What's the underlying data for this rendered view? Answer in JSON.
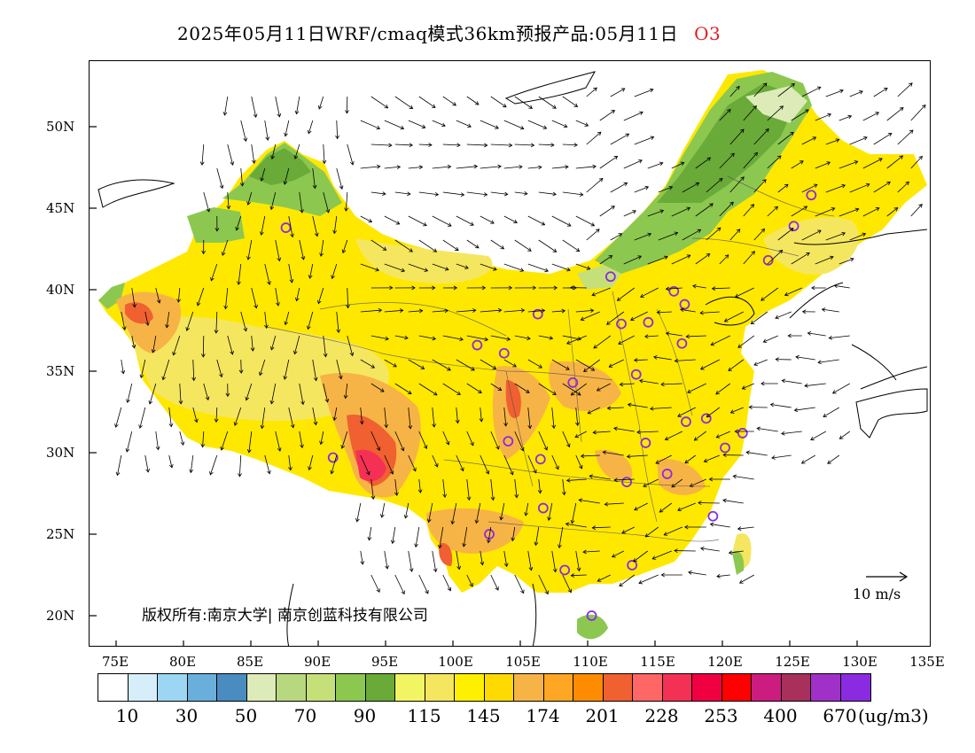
{
  "title": {
    "text": "2025年05月11日WRF/cmaq模式36km预报产品:05月11日",
    "species": "O3"
  },
  "map": {
    "lat_labels": [
      "50N",
      "45N",
      "40N",
      "35N",
      "30N",
      "25N",
      "20N"
    ],
    "lon_labels": [
      "75E",
      "80E",
      "85E",
      "90E",
      "95E",
      "100E",
      "105E",
      "110E",
      "115E",
      "120E",
      "125E",
      "130E",
      "135E"
    ],
    "copyright": "版权所有:南京大学| 南京创蓝科技有限公司",
    "wind_scale_label": "10 m/s"
  },
  "legend": {
    "colors": [
      "#ffffff",
      "#d5eefa",
      "#9dd6f2",
      "#6aaedc",
      "#4a8cc0",
      "#dcebb8",
      "#b8d880",
      "#c5e078",
      "#8cc850",
      "#6aaa38",
      "#f2f562",
      "#f5e660",
      "#fff000",
      "#ffda00",
      "#f7b446",
      "#ffa724",
      "#ff8c00",
      "#f06030",
      "#ff6666",
      "#f53055",
      "#f00040",
      "#ff0000",
      "#cc1c80",
      "#a8305a",
      "#a030c8",
      "#8a2be2"
    ],
    "labels": [
      "10",
      "30",
      "50",
      "70",
      "90",
      "115",
      "145",
      "174",
      "201",
      "228",
      "253",
      "400",
      "670"
    ],
    "unit": "(ug/m3)"
  },
  "stations": [
    {
      "lon": 87.6,
      "lat": 43.8
    },
    {
      "lon": 91.1,
      "lat": 29.7
    },
    {
      "lon": 101.8,
      "lat": 36.6
    },
    {
      "lon": 103.8,
      "lat": 36.1
    },
    {
      "lon": 106.3,
      "lat": 38.5
    },
    {
      "lon": 111.7,
      "lat": 40.8
    },
    {
      "lon": 112.5,
      "lat": 37.9
    },
    {
      "lon": 114.5,
      "lat": 38.0
    },
    {
      "lon": 116.4,
      "lat": 39.9
    },
    {
      "lon": 117.2,
      "lat": 39.1
    },
    {
      "lon": 117.0,
      "lat": 36.7
    },
    {
      "lon": 113.6,
      "lat": 34.8
    },
    {
      "lon": 108.9,
      "lat": 34.3
    },
    {
      "lon": 104.1,
      "lat": 30.7
    },
    {
      "lon": 106.5,
      "lat": 29.6
    },
    {
      "lon": 114.3,
      "lat": 30.6
    },
    {
      "lon": 117.3,
      "lat": 31.9
    },
    {
      "lon": 118.8,
      "lat": 32.1
    },
    {
      "lon": 121.5,
      "lat": 31.2
    },
    {
      "lon": 120.2,
      "lat": 30.3
    },
    {
      "lon": 112.9,
      "lat": 28.2
    },
    {
      "lon": 115.9,
      "lat": 28.7
    },
    {
      "lon": 119.3,
      "lat": 26.1
    },
    {
      "lon": 106.7,
      "lat": 26.6
    },
    {
      "lon": 102.7,
      "lat": 25.0
    },
    {
      "lon": 108.3,
      "lat": 22.8
    },
    {
      "lon": 113.3,
      "lat": 23.1
    },
    {
      "lon": 110.3,
      "lat": 20.0
    },
    {
      "lon": 123.4,
      "lat": 41.8
    },
    {
      "lon": 125.3,
      "lat": 43.9
    },
    {
      "lon": 126.6,
      "lat": 45.8
    }
  ]
}
